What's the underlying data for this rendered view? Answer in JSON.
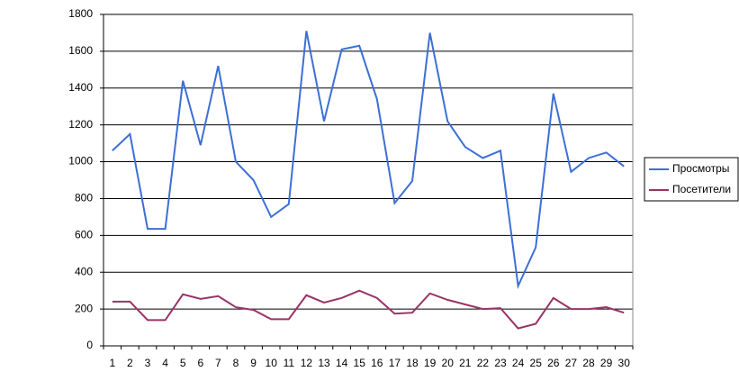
{
  "chart_data": {
    "type": "line",
    "categories": [
      "1",
      "2",
      "3",
      "4",
      "5",
      "6",
      "7",
      "8",
      "9",
      "10",
      "11",
      "12",
      "13",
      "14",
      "15",
      "16",
      "17",
      "18",
      "19",
      "20",
      "21",
      "22",
      "23",
      "24",
      "25",
      "26",
      "27",
      "28",
      "29",
      "30"
    ],
    "series": [
      {
        "name": "Просмотры",
        "color": "#3d6fd6",
        "values": [
          1060,
          1150,
          635,
          635,
          1440,
          1090,
          1520,
          1000,
          900,
          700,
          770,
          1710,
          1220,
          1610,
          1630,
          1340,
          775,
          895,
          1700,
          1220,
          1080,
          1020,
          1060,
          325,
          535,
          1370,
          945,
          1020,
          1050,
          975
        ]
      },
      {
        "name": "Посетители",
        "color": "#993366",
        "values": [
          240,
          240,
          140,
          140,
          280,
          255,
          270,
          210,
          195,
          145,
          145,
          275,
          235,
          260,
          300,
          260,
          175,
          180,
          285,
          250,
          225,
          200,
          205,
          95,
          120,
          260,
          200,
          200,
          210,
          180
        ]
      }
    ],
    "ylim": [
      0,
      1800
    ],
    "yticks": [
      0,
      200,
      400,
      600,
      800,
      1000,
      1200,
      1400,
      1600,
      1800
    ],
    "grid": true,
    "legend": "right"
  }
}
